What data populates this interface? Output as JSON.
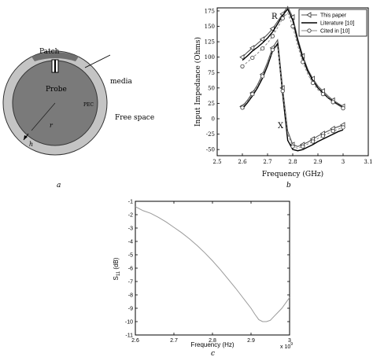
{
  "panel_a": {
    "label": "a",
    "annotations": {
      "patch": "Patch",
      "media": "media",
      "probe": "Probe",
      "pec": "PEC",
      "free_space": "Free space",
      "r": "r",
      "h": "h"
    }
  },
  "chart_data": [
    {
      "type": "line",
      "panel_label": "b",
      "xlabel": "Frequency (GHz)",
      "ylabel": "Input Impedance (Ohms)",
      "xlim": [
        2.5,
        3.1
      ],
      "ylim": [
        -60,
        180
      ],
      "xticks": [
        "2.5",
        "2.6",
        "2.7",
        "2.8",
        "2.9",
        "3",
        "3.1"
      ],
      "yticks": [
        "-50",
        "-25",
        "0",
        "25",
        "50",
        "75",
        "100",
        "125",
        "150",
        "175"
      ],
      "grid": false,
      "legend": {
        "placement": "top-right",
        "entries": [
          "This paper",
          "Literature [10]",
          "Cited in [10]"
        ]
      },
      "annotations": [
        "R",
        "X"
      ],
      "series": [
        {
          "name": "This paper",
          "component": "R",
          "style": "triangle-markers",
          "x": [
            2.6,
            2.62,
            2.64,
            2.66,
            2.68,
            2.7,
            2.72,
            2.74,
            2.76,
            2.78,
            2.8,
            2.82,
            2.84,
            2.86,
            2.88,
            2.9,
            2.92,
            2.94,
            2.96,
            2.98,
            3.0
          ],
          "values": [
            100,
            108,
            115,
            122,
            129,
            137,
            146,
            158,
            170,
            182,
            165,
            130,
            102,
            80,
            65,
            53,
            45,
            37,
            30,
            25,
            20
          ]
        },
        {
          "name": "Literature [10]",
          "component": "R",
          "style": "solid",
          "x": [
            2.6,
            2.62,
            2.64,
            2.66,
            2.68,
            2.7,
            2.72,
            2.74,
            2.76,
            2.78,
            2.8,
            2.82,
            2.84,
            2.86,
            2.88,
            2.9,
            2.92,
            2.94,
            2.96,
            2.98,
            3.0
          ],
          "values": [
            95,
            102,
            110,
            116,
            123,
            131,
            141,
            154,
            168,
            178,
            160,
            126,
            98,
            77,
            62,
            50,
            42,
            34,
            28,
            23,
            18
          ]
        },
        {
          "name": "Cited in [10]",
          "component": "R",
          "style": "circle-markers",
          "x": [
            2.6,
            2.62,
            2.64,
            2.66,
            2.68,
            2.7,
            2.72,
            2.74,
            2.76,
            2.78,
            2.8,
            2.82,
            2.84,
            2.86,
            2.88,
            2.9,
            2.92,
            2.94,
            2.96,
            2.98,
            3.0
          ],
          "values": [
            85,
            92,
            99,
            106,
            114,
            123,
            134,
            148,
            163,
            172,
            150,
            118,
            92,
            72,
            58,
            47,
            40,
            33,
            27,
            22,
            17
          ]
        },
        {
          "name": "This paper",
          "component": "X",
          "style": "triangle-markers",
          "x": [
            2.6,
            2.62,
            2.64,
            2.66,
            2.68,
            2.7,
            2.72,
            2.74,
            2.76,
            2.78,
            2.8,
            2.82,
            2.84,
            2.86,
            2.88,
            2.9,
            2.92,
            2.94,
            2.96,
            2.98,
            3.0
          ],
          "values": [
            20,
            30,
            42,
            55,
            72,
            92,
            115,
            128,
            50,
            -20,
            -42,
            -45,
            -42,
            -38,
            -33,
            -28,
            -24,
            -20,
            -16,
            -13,
            -10
          ]
        },
        {
          "name": "Literature [10]",
          "component": "X",
          "style": "solid",
          "x": [
            2.6,
            2.62,
            2.64,
            2.66,
            2.68,
            2.7,
            2.72,
            2.74,
            2.76,
            2.78,
            2.8,
            2.82,
            2.84,
            2.86,
            2.88,
            2.9,
            2.92,
            2.94,
            2.96,
            2.98,
            3.0
          ],
          "values": [
            16,
            26,
            37,
            50,
            66,
            86,
            110,
            122,
            40,
            -35,
            -50,
            -52,
            -50,
            -46,
            -42,
            -37,
            -33,
            -29,
            -25,
            -21,
            -18
          ]
        },
        {
          "name": "Cited in [10]",
          "component": "X",
          "style": "circle-markers",
          "x": [
            2.6,
            2.62,
            2.64,
            2.66,
            2.68,
            2.7,
            2.72,
            2.74,
            2.76,
            2.78,
            2.8,
            2.82,
            2.84,
            2.86,
            2.88,
            2.9,
            2.92,
            2.94,
            2.96,
            2.98,
            3.0
          ],
          "values": [
            18,
            28,
            40,
            53,
            69,
            90,
            112,
            118,
            45,
            -25,
            -45,
            -48,
            -45,
            -41,
            -37,
            -32,
            -28,
            -24,
            -20,
            -17,
            -14
          ]
        }
      ]
    },
    {
      "type": "line",
      "panel_label": "c",
      "xlabel": "Frequency (Hz)",
      "ylabel": "S11 (dB)",
      "ylabel_main": "S",
      "ylabel_sub": "11",
      "ylabel_unit": " (dB)",
      "x_multiplier_base": "x 10",
      "x_multiplier_exp": "9",
      "xlim": [
        2.6,
        3.0
      ],
      "ylim": [
        -11,
        -1
      ],
      "xticks": [
        "2.6",
        "2.7",
        "2.8",
        "2.9",
        "3"
      ],
      "yticks": [
        "-1",
        "-2",
        "-3",
        "-4",
        "-5",
        "-6",
        "-7",
        "-8",
        "-9",
        "-10",
        "-11"
      ],
      "grid": false,
      "series": [
        {
          "color": "#9a9a9a",
          "x": [
            2.6,
            2.62,
            2.64,
            2.66,
            2.68,
            2.7,
            2.72,
            2.74,
            2.76,
            2.78,
            2.8,
            2.82,
            2.84,
            2.86,
            2.88,
            2.9,
            2.91,
            2.92,
            2.93,
            2.94,
            2.95,
            2.96,
            2.97,
            2.98,
            3.0
          ],
          "values": [
            -1.4,
            -1.7,
            -1.9,
            -2.2,
            -2.55,
            -2.95,
            -3.35,
            -3.8,
            -4.3,
            -4.85,
            -5.45,
            -6.1,
            -6.8,
            -7.5,
            -8.25,
            -9.0,
            -9.45,
            -9.85,
            -10.0,
            -10.0,
            -9.9,
            -9.6,
            -9.3,
            -9.0,
            -8.2
          ]
        }
      ]
    }
  ]
}
